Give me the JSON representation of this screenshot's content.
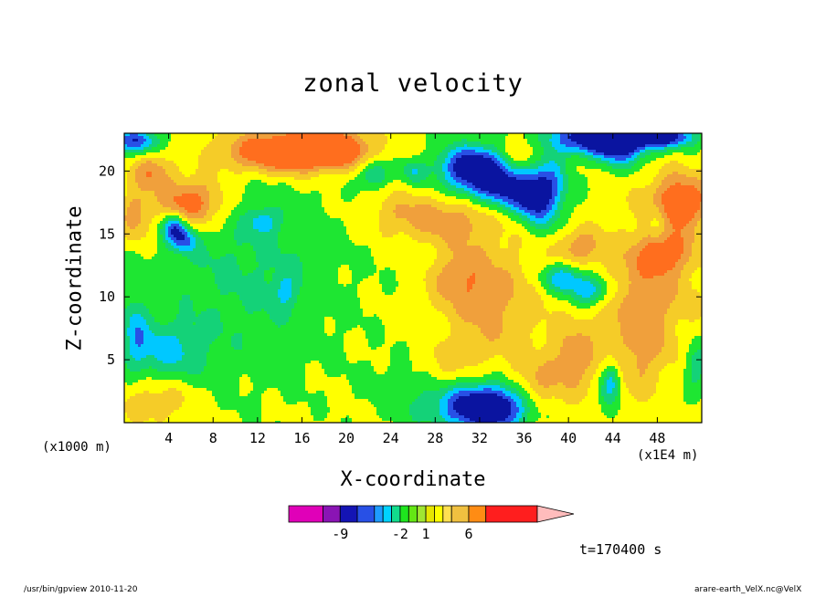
{
  "chart_data": {
    "type": "heatmap",
    "title": "zonal velocity",
    "xlabel": "X-coordinate",
    "ylabel": "Z-coordinate",
    "x_unit_label": "(x1E4 m)",
    "y_unit_label": "(x1000 m)",
    "time_label": "t=170400 s",
    "xlim": [
      0,
      52
    ],
    "ylim": [
      0,
      23
    ],
    "x_ticks": [
      4,
      8,
      12,
      16,
      20,
      24,
      28,
      32,
      36,
      40,
      44,
      48
    ],
    "x_tick_labels": [
      "4",
      "8",
      "12",
      "16",
      "20",
      "24",
      "28",
      "32",
      "36",
      "40",
      "44",
      "48"
    ],
    "y_ticks": [
      5,
      10,
      15,
      20
    ],
    "y_tick_labels": [
      "5",
      "10",
      "15",
      "20"
    ],
    "colorbar": {
      "labels": [
        {
          "text": "-9",
          "value": -9
        },
        {
          "text": "-2",
          "value": -2
        },
        {
          "text": "1",
          "value": 1
        },
        {
          "text": "6",
          "value": 6
        }
      ],
      "levels": [
        -15,
        -11,
        -9,
        -7,
        -5,
        -4,
        -3,
        -2,
        -1,
        0,
        1,
        2,
        3,
        4,
        6,
        8,
        14
      ],
      "colors": [
        "#e000b8",
        "#8a14b4",
        "#1414b4",
        "#2850e6",
        "#1e9bff",
        "#00d2ff",
        "#12dc8c",
        "#1ee61e",
        "#64e614",
        "#a0e632",
        "#e6e600",
        "#ffff00",
        "#ffe050",
        "#f0c040",
        "#ff8c14",
        "#ff1e1e",
        "#ff8080"
      ],
      "overflow_color": "#ffbcbc"
    },
    "levels": [
      -5.5,
      -4,
      -2.5,
      -1,
      0.5,
      2,
      3.5,
      5
    ],
    "colors": [
      "#0a14a0",
      "#2850e6",
      "#00c8ff",
      "#14d278",
      "#1ee632",
      "#ffff00",
      "#f5cc28",
      "#f0a03c",
      "#ff6e1e"
    ],
    "features": [
      {
        "x": 31.5,
        "z": 20.2,
        "amp": -9,
        "sx": 2.2,
        "sz": 1.3
      },
      {
        "x": 34.5,
        "z": 18.5,
        "amp": -6,
        "sx": 2.0,
        "sz": 1.2
      },
      {
        "x": 38.0,
        "z": 18.5,
        "amp": -6,
        "sx": 1.3,
        "sz": 2.0
      },
      {
        "x": 43.0,
        "z": 22.6,
        "amp": -9,
        "sx": 3.5,
        "sz": 0.9
      },
      {
        "x": 48.5,
        "z": 22.8,
        "amp": -7,
        "sx": 2.0,
        "sz": 0.6
      },
      {
        "x": 1.0,
        "z": 22.4,
        "amp": -6,
        "sx": 1.5,
        "sz": 0.7
      },
      {
        "x": 4.5,
        "z": 15.5,
        "amp": -6,
        "sx": 0.8,
        "sz": 0.8
      },
      {
        "x": 5.5,
        "z": 14.5,
        "amp": -4,
        "sx": 0.8,
        "sz": 0.7
      },
      {
        "x": 12.5,
        "z": 16.0,
        "amp": -3,
        "sx": 1.0,
        "sz": 0.7
      },
      {
        "x": 22.5,
        "z": 19.8,
        "amp": -4,
        "sx": 0.9,
        "sz": 0.8
      },
      {
        "x": 26.0,
        "z": 20.0,
        "amp": -3,
        "sx": 0.8,
        "sz": 0.7
      },
      {
        "x": 36.5,
        "z": 17.5,
        "amp": -3,
        "sx": 1.0,
        "sz": 1.2
      },
      {
        "x": 39.5,
        "z": 11.5,
        "amp": -5,
        "sx": 1.3,
        "sz": 0.8
      },
      {
        "x": 42.0,
        "z": 10.5,
        "amp": -5,
        "sx": 1.3,
        "sz": 0.8
      },
      {
        "x": 33.0,
        "z": 1.2,
        "amp": -8,
        "sx": 2.6,
        "sz": 1.2
      },
      {
        "x": 31.0,
        "z": 1.4,
        "amp": -3,
        "sx": 3.5,
        "sz": 1.6
      },
      {
        "x": 43.5,
        "z": 2.5,
        "amp": -3,
        "sx": 0.6,
        "sz": 1.4
      },
      {
        "x": 44.0,
        "z": 3.5,
        "amp": -3,
        "sx": 0.5,
        "sz": 1.0
      },
      {
        "x": 3.5,
        "z": 5.5,
        "amp": -3.5,
        "sx": 2.6,
        "sz": 1.8
      },
      {
        "x": 1.0,
        "z": 7.5,
        "amp": -3,
        "sx": 0.8,
        "sz": 2.0
      },
      {
        "x": 14.5,
        "z": 10.5,
        "amp": -2.5,
        "sx": 0.8,
        "sz": 1.0
      },
      {
        "x": 51.5,
        "z": 4.5,
        "amp": -3,
        "sx": 0.8,
        "sz": 1.4
      },
      {
        "x": 48.0,
        "z": 16.0,
        "amp": -3,
        "sx": 0.6,
        "sz": 1.0
      },
      {
        "x": 44.5,
        "z": 21.5,
        "amp": -4,
        "sx": 1.5,
        "sz": 1.0
      },
      {
        "x": 14.0,
        "z": 21.5,
        "amp": 7,
        "sx": 4.0,
        "sz": 1.2
      },
      {
        "x": 18.5,
        "z": 21.8,
        "amp": 6,
        "sx": 2.5,
        "sz": 1.0
      },
      {
        "x": 6.0,
        "z": 17.5,
        "amp": 6,
        "sx": 2.2,
        "sz": 1.4
      },
      {
        "x": 2.5,
        "z": 20.0,
        "amp": 4,
        "sx": 1.2,
        "sz": 1.0
      },
      {
        "x": 1.0,
        "z": 16.5,
        "amp": 3.5,
        "sx": 1.0,
        "sz": 1.5
      },
      {
        "x": 50.0,
        "z": 17.5,
        "amp": 6,
        "sx": 2.0,
        "sz": 1.6
      },
      {
        "x": 48.5,
        "z": 13.5,
        "amp": 4,
        "sx": 1.8,
        "sz": 1.2
      },
      {
        "x": 47.0,
        "z": 10.5,
        "amp": 3,
        "sx": 3.0,
        "sz": 3.0
      },
      {
        "x": 41.0,
        "z": 14.0,
        "amp": 3.5,
        "sx": 1.5,
        "sz": 1.0
      },
      {
        "x": 33.0,
        "z": 9.5,
        "amp": 3,
        "sx": 3.0,
        "sz": 3.5
      },
      {
        "x": 30.0,
        "z": 11.5,
        "amp": 2.5,
        "sx": 1.8,
        "sz": 1.5
      },
      {
        "x": 30.0,
        "z": 16.0,
        "amp": 3,
        "sx": 2.5,
        "sz": 1.3
      },
      {
        "x": 25.0,
        "z": 16.5,
        "amp": 2.5,
        "sx": 2.5,
        "sz": 1.3
      },
      {
        "x": 36.0,
        "z": 21.5,
        "amp": 3,
        "sx": 1.5,
        "sz": 1.0
      },
      {
        "x": 37.0,
        "z": 2.5,
        "amp": 3,
        "sx": 1.5,
        "sz": 1.6
      },
      {
        "x": 40.5,
        "z": 5.0,
        "amp": 3.5,
        "sx": 1.6,
        "sz": 2.0
      },
      {
        "x": 28.5,
        "z": 4.0,
        "amp": 2,
        "sx": 2.0,
        "sz": 1.5
      },
      {
        "x": 46.5,
        "z": 5.5,
        "amp": 2.5,
        "sx": 1.8,
        "sz": 2.5
      },
      {
        "x": 3.0,
        "z": 2.0,
        "amp": 2.5,
        "sx": 2.5,
        "sz": 1.5
      }
    ]
  },
  "footer": {
    "left": "/usr/bin/gpview   2010-11-20",
    "right": "arare-earth_VelX.nc@VelX"
  }
}
